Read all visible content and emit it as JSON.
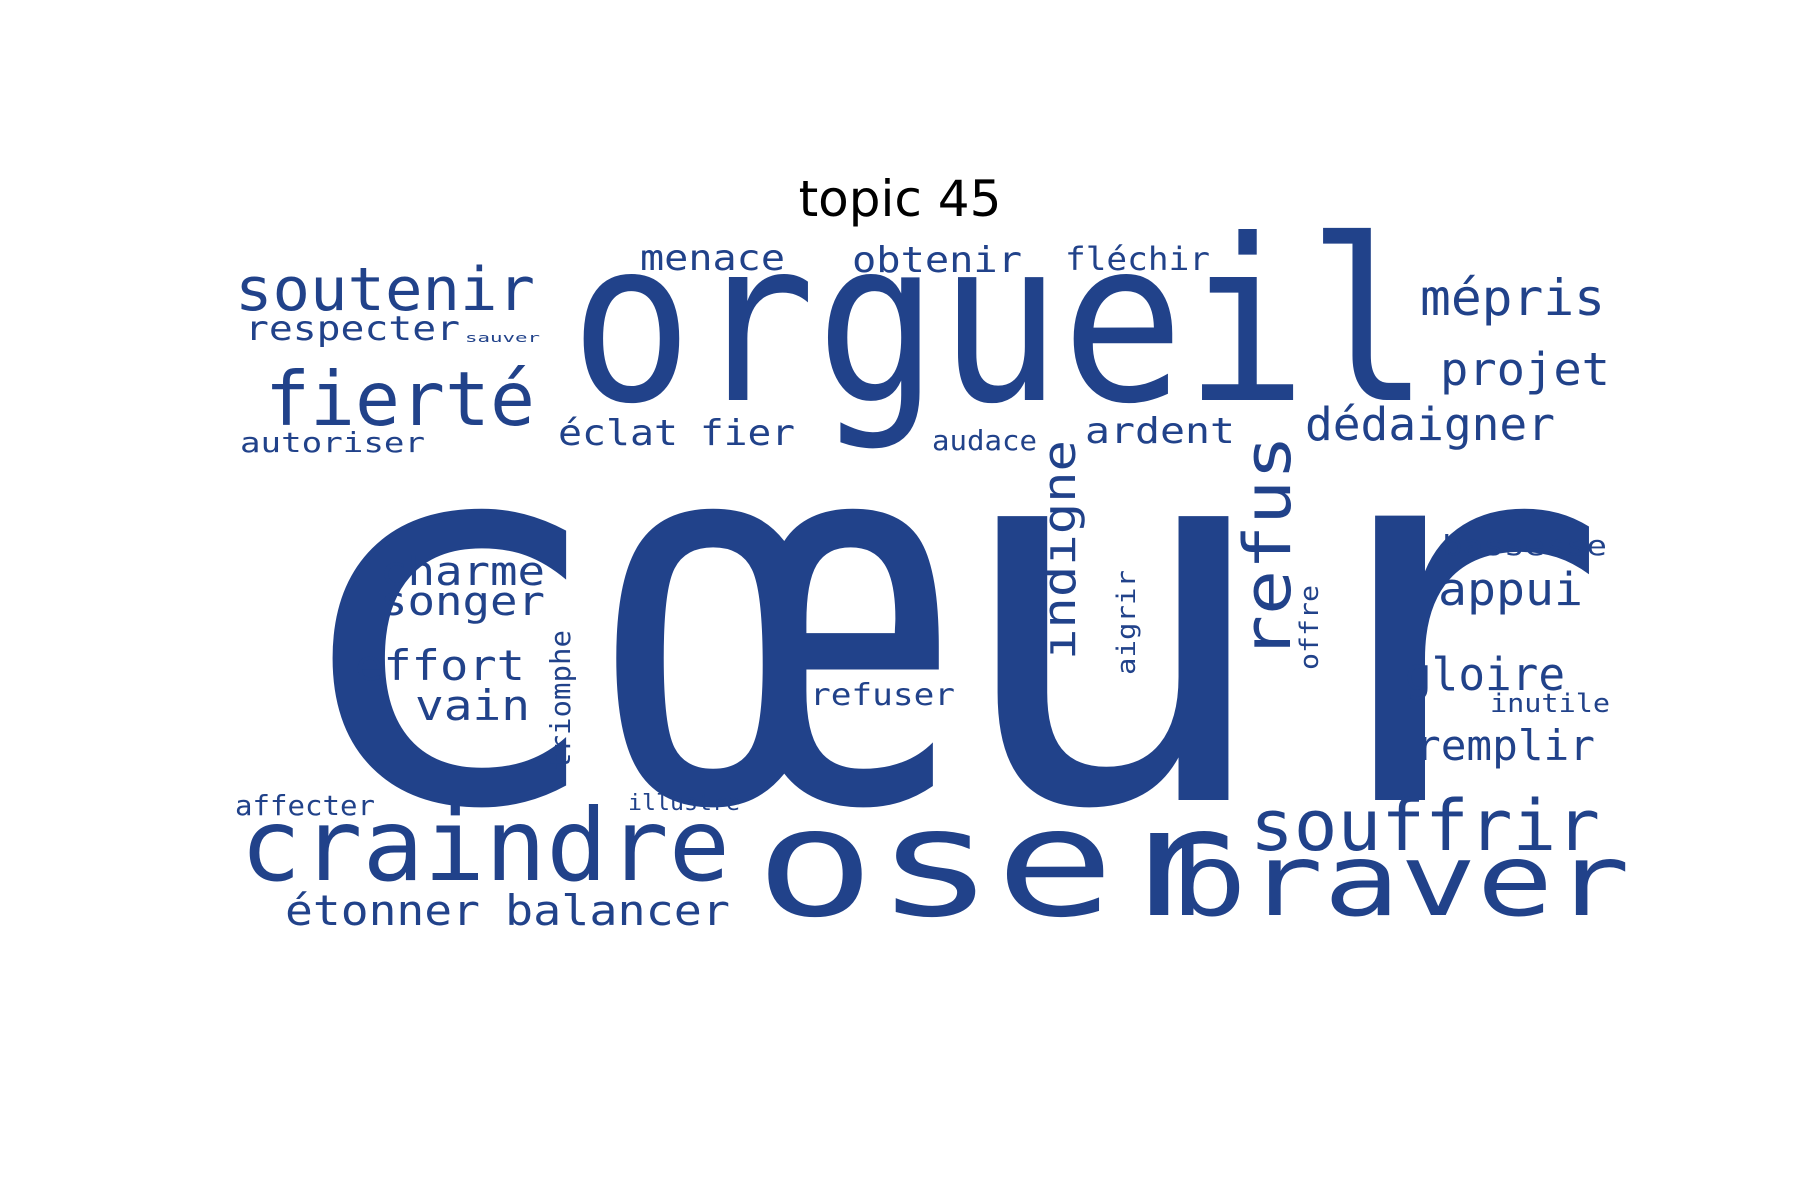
{
  "title": "topic 45",
  "colors": {
    "word": "#21428a",
    "background": "#ffffff",
    "title": "#000000"
  },
  "words": [
    "cœur",
    "orgueil",
    "oser",
    "braver",
    "craindre",
    "souffrir",
    "fierté",
    "soutenir",
    "mépris",
    "refus",
    "indigne",
    "projet",
    "dédaigner",
    "charme",
    "songer",
    "effort",
    "vain",
    "appui",
    "gloire",
    "remplir",
    "étonner",
    "balancer",
    "menace",
    "obtenir",
    "fléchir",
    "respecter",
    "éclat",
    "fier",
    "ardent",
    "autoriser",
    "audace",
    "bassesse",
    "triomphe",
    "aigrir",
    "offre",
    "refuser",
    "inutile",
    "affecter",
    "illustre",
    "sauver"
  ]
}
